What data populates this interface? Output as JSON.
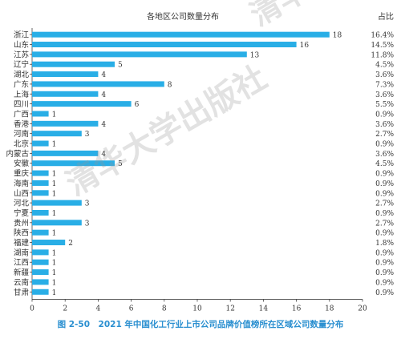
{
  "chart_data": {
    "type": "bar",
    "orientation": "horizontal",
    "title": "各地区公司数量分布",
    "pct_header": "占比",
    "categories": [
      "浙江",
      "山东",
      "江苏",
      "辽宁",
      "湖北",
      "广东",
      "上海",
      "四川",
      "广西",
      "香港",
      "河南",
      "北京",
      "内蒙古",
      "安徽",
      "重庆",
      "海南",
      "山西",
      "河北",
      "宁夏",
      "贵州",
      "陕西",
      "福建",
      "湖南",
      "江西",
      "新疆",
      "云南",
      "甘肃"
    ],
    "values": [
      18,
      16,
      13,
      5,
      4,
      8,
      4,
      6,
      1,
      4,
      3,
      1,
      4,
      5,
      1,
      1,
      1,
      3,
      1,
      3,
      1,
      2,
      1,
      1,
      1,
      1,
      1
    ],
    "percentages": [
      "16.4%",
      "14.5%",
      "11.8%",
      "4.5%",
      "3.6%",
      "7.3%",
      "3.6%",
      "5.5%",
      "0.9%",
      "3.6%",
      "2.7%",
      "0.9%",
      "3.6%",
      "4.5%",
      "0.9%",
      "0.9%",
      "0.9%",
      "2.7%",
      "0.9%",
      "2.7%",
      "0.9%",
      "1.8%",
      "0.9%",
      "0.9%",
      "0.9%",
      "0.9%",
      "0.9%"
    ],
    "xlim": [
      0,
      20
    ],
    "xticks": [
      0,
      2,
      4,
      6,
      8,
      10,
      12,
      14,
      16,
      18,
      20
    ],
    "bar_color": "#29aee6",
    "grid": false
  },
  "caption": "图 2-50　2021 年中国化工行业上市公司品牌价值榜所在区域公司数量分布",
  "watermark": "清华大学出版社"
}
